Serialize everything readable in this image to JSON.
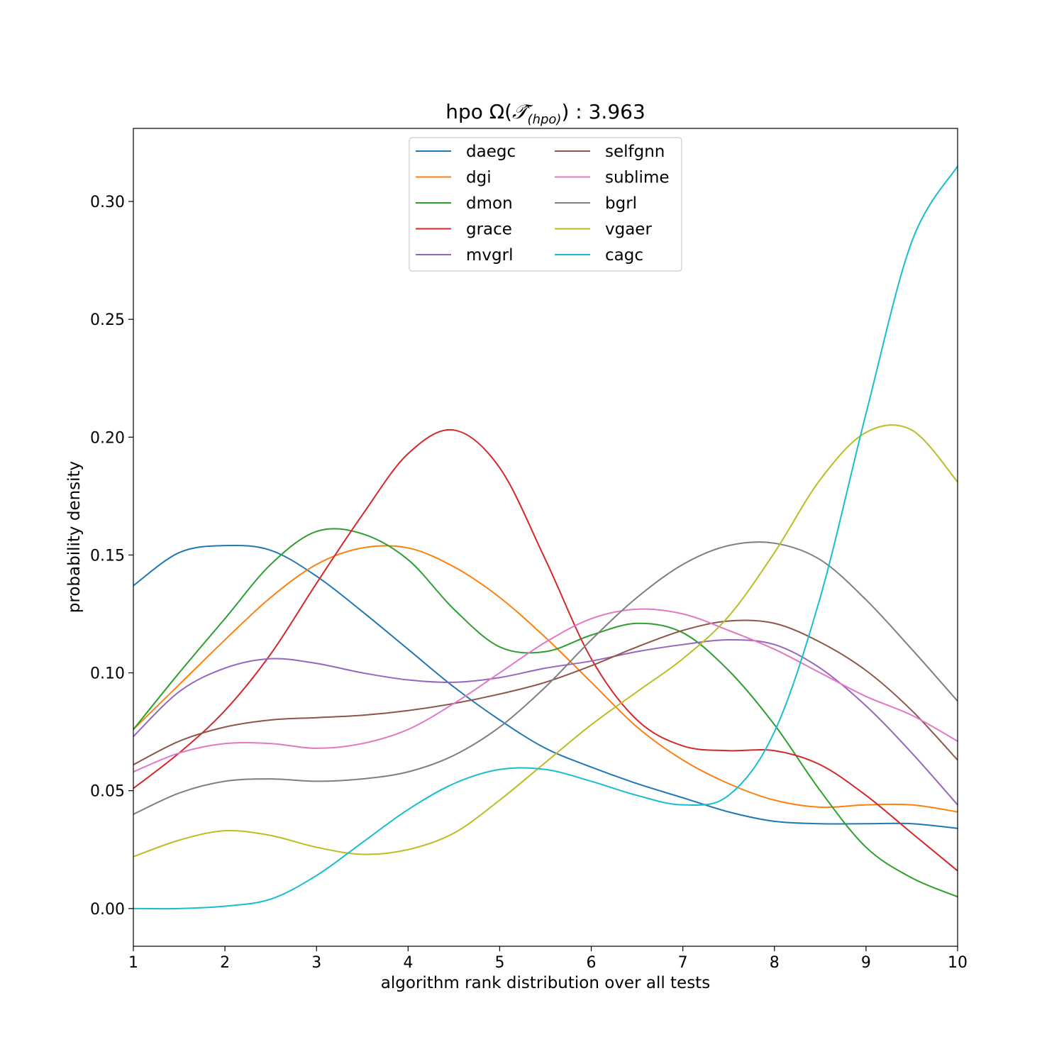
{
  "chart_data": {
    "type": "line",
    "title": {
      "prefix": "hpo Ω(",
      "symbol": "𝒯̂",
      "subscript": "(hpo)",
      "suffix": ") : 3.963"
    },
    "xlabel": "algorithm rank distribution over all tests",
    "ylabel": "probability density",
    "xlim": [
      1,
      10
    ],
    "ylim": [
      -0.016,
      0.331
    ],
    "xticks": [
      "1",
      "2",
      "3",
      "4",
      "5",
      "6",
      "7",
      "8",
      "9",
      "10"
    ],
    "yticks": [
      "0.00",
      "0.05",
      "0.10",
      "0.15",
      "0.20",
      "0.25",
      "0.30"
    ],
    "grid": false,
    "legend_position": "upper-center",
    "legend_columns": 2,
    "x": [
      1,
      1.5,
      2,
      2.5,
      3,
      3.5,
      4,
      4.5,
      5,
      5.5,
      6,
      6.5,
      7,
      7.5,
      8,
      8.5,
      9,
      9.5,
      10
    ],
    "series": [
      {
        "name": "daegc",
        "color": "#1f77b4",
        "values": [
          0.137,
          0.151,
          0.154,
          0.152,
          0.141,
          0.126,
          0.11,
          0.094,
          0.08,
          0.068,
          0.06,
          0.053,
          0.047,
          0.041,
          0.037,
          0.036,
          0.036,
          0.036,
          0.034
        ]
      },
      {
        "name": "dgi",
        "color": "#ff7f0e",
        "values": [
          0.076,
          0.095,
          0.114,
          0.132,
          0.146,
          0.153,
          0.153,
          0.145,
          0.132,
          0.115,
          0.096,
          0.077,
          0.063,
          0.053,
          0.046,
          0.043,
          0.044,
          0.044,
          0.041
        ]
      },
      {
        "name": "dmon",
        "color": "#2ca02c",
        "values": [
          0.076,
          0.1,
          0.123,
          0.146,
          0.16,
          0.159,
          0.148,
          0.127,
          0.111,
          0.109,
          0.116,
          0.121,
          0.117,
          0.101,
          0.078,
          0.05,
          0.026,
          0.013,
          0.005
        ]
      },
      {
        "name": "grace",
        "color": "#d62728",
        "values": [
          0.051,
          0.066,
          0.084,
          0.108,
          0.138,
          0.167,
          0.193,
          0.203,
          0.187,
          0.148,
          0.106,
          0.08,
          0.069,
          0.067,
          0.067,
          0.061,
          0.048,
          0.032,
          0.016
        ]
      },
      {
        "name": "mvgrl",
        "color": "#9467bd",
        "values": [
          0.073,
          0.092,
          0.102,
          0.106,
          0.104,
          0.1,
          0.097,
          0.096,
          0.098,
          0.102,
          0.105,
          0.109,
          0.112,
          0.114,
          0.112,
          0.102,
          0.086,
          0.066,
          0.044
        ]
      },
      {
        "name": "selfgnn",
        "color": "#8c564b",
        "values": [
          0.061,
          0.071,
          0.077,
          0.08,
          0.081,
          0.082,
          0.084,
          0.087,
          0.091,
          0.096,
          0.103,
          0.111,
          0.118,
          0.122,
          0.121,
          0.113,
          0.101,
          0.084,
          0.063
        ]
      },
      {
        "name": "sublime",
        "color": "#e377c2",
        "values": [
          0.058,
          0.066,
          0.07,
          0.07,
          0.068,
          0.07,
          0.076,
          0.087,
          0.1,
          0.113,
          0.123,
          0.127,
          0.125,
          0.118,
          0.11,
          0.1,
          0.09,
          0.082,
          0.071
        ]
      },
      {
        "name": "bgrl",
        "color": "#7f7f7f",
        "values": [
          0.04,
          0.049,
          0.054,
          0.055,
          0.054,
          0.055,
          0.058,
          0.065,
          0.077,
          0.094,
          0.114,
          0.132,
          0.146,
          0.154,
          0.155,
          0.148,
          0.131,
          0.11,
          0.088
        ]
      },
      {
        "name": "vgaer",
        "color": "#bcbd22",
        "values": [
          0.022,
          0.029,
          0.033,
          0.031,
          0.026,
          0.023,
          0.025,
          0.032,
          0.046,
          0.062,
          0.078,
          0.092,
          0.106,
          0.124,
          0.151,
          0.182,
          0.202,
          0.203,
          0.181
        ]
      },
      {
        "name": "cagc",
        "color": "#17becf",
        "values": [
          0.0,
          0.0,
          0.001,
          0.004,
          0.014,
          0.028,
          0.042,
          0.053,
          0.059,
          0.059,
          0.054,
          0.048,
          0.044,
          0.048,
          0.075,
          0.132,
          0.21,
          0.283,
          0.315
        ]
      }
    ]
  }
}
